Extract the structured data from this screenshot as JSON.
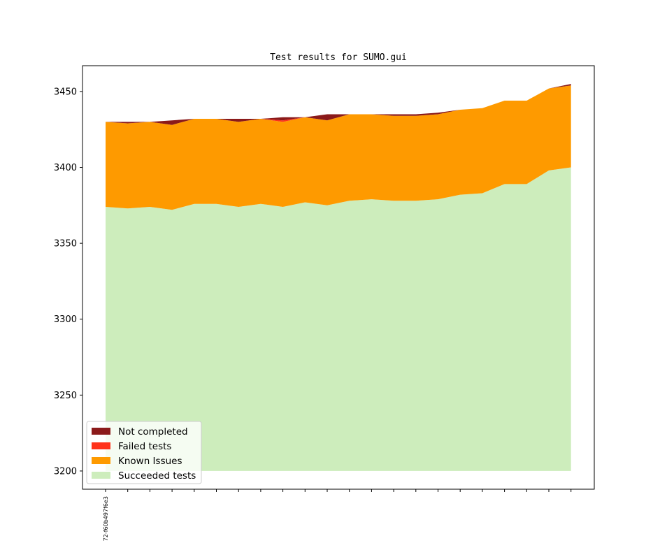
{
  "chart_data": {
    "type": "area",
    "title": "Test results for SUMO.gui",
    "xlabel": "",
    "ylabel": "",
    "ylim": [
      3188,
      3467
    ],
    "yticks": [
      3200,
      3250,
      3300,
      3350,
      3400,
      3450
    ],
    "baseline": 3200,
    "x_tick_count": 22,
    "x_tick_labels": [
      "72-f60b497f6e3"
    ],
    "legend_position": "lower-left",
    "series": [
      {
        "name": "Succeeded tests",
        "color": "#cdedbc",
        "values": [
          3374,
          3373,
          3374,
          3372,
          3376,
          3376,
          3374,
          3376,
          3374,
          3377,
          3375,
          3378,
          3379,
          3378,
          3378,
          3379,
          3382,
          3383,
          3389,
          3389,
          3398,
          3400
        ]
      },
      {
        "name": "Known Issues",
        "color": "#fe9a00",
        "values": [
          56,
          56,
          56,
          56,
          56,
          56,
          56,
          56,
          56,
          56,
          56,
          57,
          56,
          56,
          56,
          56,
          56,
          56,
          55,
          55,
          54,
          54
        ]
      },
      {
        "name": "Failed tests",
        "color": "#ff321a",
        "values": [
          0,
          0,
          0,
          0,
          0,
          0,
          0,
          0,
          1,
          0,
          0,
          0,
          0,
          0,
          0,
          0,
          0,
          0,
          0,
          0,
          0,
          0
        ]
      },
      {
        "name": "Not completed",
        "color": "#8b1a1a",
        "values": [
          0,
          1,
          0,
          3,
          0,
          0,
          2,
          0,
          2,
          0,
          4,
          0,
          0,
          1,
          1,
          1,
          0,
          0,
          0,
          0,
          0,
          1
        ]
      }
    ],
    "legend_order": [
      "Not completed",
      "Failed tests",
      "Known Issues",
      "Succeeded tests"
    ]
  }
}
